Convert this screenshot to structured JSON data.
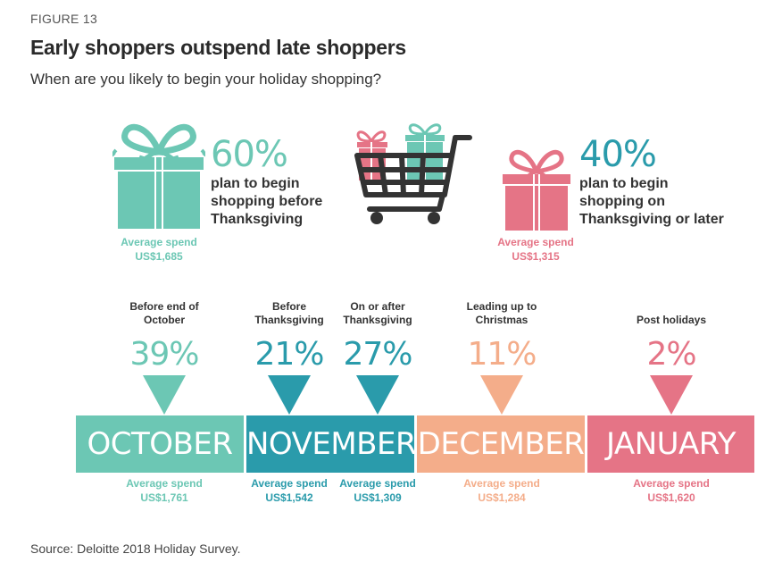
{
  "figure_label": "FIGURE 13",
  "title": "Early shoppers outspend late shoppers",
  "subtitle": "When are you likely to begin your holiday shopping?",
  "colors": {
    "teal_light": "#6cc7b4",
    "teal_dark": "#2a9bab",
    "peach": "#f4ad8a",
    "pink": "#e57486",
    "cart": "#333333"
  },
  "icons": [
    "gift-teal-icon",
    "shopping-cart-icon",
    "gift-pink-icon"
  ],
  "early": {
    "pct": "60%",
    "desc": [
      "plan to begin",
      "shopping before",
      "Thanksgiving"
    ],
    "avg_label": "Average spend",
    "avg_value": "US$1,685"
  },
  "late": {
    "pct": "40%",
    "desc": [
      "plan to begin",
      "shopping on",
      "Thanksgiving or later"
    ],
    "avg_label": "Average spend",
    "avg_value": "US$1,315"
  },
  "chart_data": {
    "type": "bar",
    "title": "When are you likely to begin your holiday shopping?",
    "categories": [
      "Before end of October",
      "Before Thanksgiving",
      "On or after Thanksgiving",
      "Leading up to Christmas",
      "Post holidays"
    ],
    "values": [
      39,
      21,
      27,
      11,
      2
    ],
    "value_labels": [
      "39%",
      "21%",
      "27%",
      "11%",
      "2%"
    ],
    "average_spend": [
      "US$1,761",
      "US$1,542",
      "US$1,309",
      "US$1,284",
      "US$1,620"
    ],
    "average_spend_label": "Average spend",
    "summary": {
      "before_thanksgiving": 60,
      "on_or_after_thanksgiving": 40,
      "average_spend": [
        "US$1,685",
        "US$1,315"
      ]
    }
  },
  "periods": [
    {
      "label": [
        "Before end of",
        "October"
      ],
      "pct": "39%",
      "avg_label": "Average spend",
      "avg_value": "US$1,761"
    },
    {
      "label": [
        "Before",
        "Thanksgiving"
      ],
      "pct": "21%",
      "avg_label": "Average spend",
      "avg_value": "US$1,542"
    },
    {
      "label": [
        "On or after",
        "Thanksgiving"
      ],
      "pct": "27%",
      "avg_label": "Average spend",
      "avg_value": "US$1,309"
    },
    {
      "label": [
        "Leading up to",
        "Christmas"
      ],
      "pct": "11%",
      "avg_label": "Average spend",
      "avg_value": "US$1,284"
    },
    {
      "label": [
        "Post holidays"
      ],
      "pct": "2%",
      "avg_label": "Average spend",
      "avg_value": "US$1,620"
    }
  ],
  "months": [
    "OCTOBER",
    "NOVEMBER",
    "DECEMBER",
    "JANUARY"
  ],
  "source": "Source: Deloitte 2018 Holiday Survey."
}
